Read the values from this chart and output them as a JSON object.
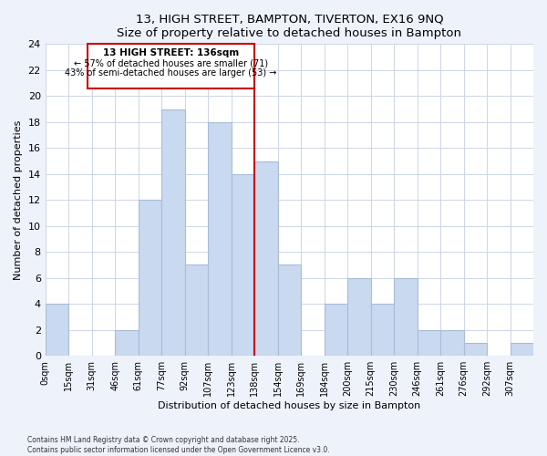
{
  "title": "13, HIGH STREET, BAMPTON, TIVERTON, EX16 9NQ",
  "subtitle": "Size of property relative to detached houses in Bampton",
  "xlabel": "Distribution of detached houses by size in Bampton",
  "ylabel": "Number of detached properties",
  "bin_labels": [
    "0sqm",
    "15sqm",
    "31sqm",
    "46sqm",
    "61sqm",
    "77sqm",
    "92sqm",
    "107sqm",
    "123sqm",
    "138sqm",
    "154sqm",
    "169sqm",
    "184sqm",
    "200sqm",
    "215sqm",
    "230sqm",
    "246sqm",
    "261sqm",
    "276sqm",
    "292sqm",
    "307sqm"
  ],
  "bar_heights": [
    4,
    0,
    0,
    2,
    12,
    19,
    7,
    18,
    14,
    15,
    7,
    0,
    4,
    6,
    4,
    6,
    2,
    2,
    1,
    0,
    1
  ],
  "bar_color": "#c9d9f0",
  "bar_edge_color": "#a8bcd8",
  "vline_x": 9,
  "vline_color": "#cc0000",
  "annotation_title": "13 HIGH STREET: 136sqm",
  "annotation_line1": "← 57% of detached houses are smaller (71)",
  "annotation_line2": "43% of semi-detached houses are larger (53) →",
  "ylim": [
    0,
    24
  ],
  "yticks": [
    0,
    2,
    4,
    6,
    8,
    10,
    12,
    14,
    16,
    18,
    20,
    22,
    24
  ],
  "footer_line1": "Contains HM Land Registry data © Crown copyright and database right 2025.",
  "footer_line2": "Contains public sector information licensed under the Open Government Licence v3.0.",
  "bg_color": "#eef2fb",
  "plot_bg_color": "#ffffff",
  "grid_color": "#cdd5e8"
}
